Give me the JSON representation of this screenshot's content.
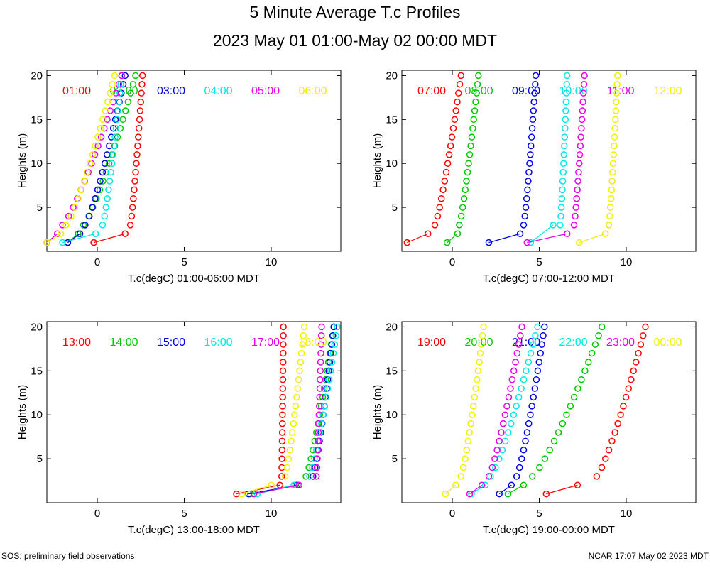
{
  "page": {
    "title": "5 Minute Average T.c Profiles",
    "subtitle": "2023 May 01 01:00-May 02 00:00 MDT",
    "footer_left": "SOS: preliminary field observations",
    "footer_right": "NCAR 17:07 May 02 2023 MDT"
  },
  "colors": [
    "#ff0000",
    "#00c800",
    "#0000e6",
    "#00e8e8",
    "#e600e6",
    "#f0f000"
  ],
  "chart_data": [
    {
      "type": "scatter",
      "xlabel": "T.c(degC) 01:00-06:00 MDT",
      "ylabel": "Heights (m)",
      "xlim": [
        -2.9,
        14
      ],
      "ylim": [
        0,
        20.6
      ],
      "xticks": [
        0,
        5,
        10
      ],
      "yticks": [
        5,
        10,
        15,
        20
      ],
      "series": [
        {
          "name": "01:00",
          "near": [
            [
              -0.2,
              1
            ],
            [
              1.6,
              2
            ]
          ],
          "upper": [
            1.9,
            2.6,
            20.0
          ]
        },
        {
          "name": "02:00",
          "near": [
            [
              -1.7,
              1
            ],
            [
              -1.1,
              2
            ]
          ],
          "upper": [
            -0.8,
            2.2,
            20.0
          ]
        },
        {
          "name": "03:00",
          "near": [
            [
              -1.7,
              1
            ],
            [
              -1.0,
              2
            ]
          ],
          "upper": [
            -0.7,
            1.6,
            20.0
          ]
        },
        {
          "name": "04:00",
          "near": [
            [
              -2.0,
              1
            ],
            [
              -0.1,
              2
            ]
          ],
          "upper": [
            0.3,
            1.4,
            20.0
          ]
        },
        {
          "name": "05:00",
          "near": [
            [
              -2.9,
              1
            ],
            [
              -2.3,
              2
            ]
          ],
          "upper": [
            -2.0,
            1.4,
            20.0
          ]
        },
        {
          "name": "06:00",
          "near": [
            [
              -2.9,
              1
            ],
            [
              -2.1,
              2
            ]
          ],
          "upper": [
            -1.8,
            1.0,
            20.0
          ]
        }
      ]
    },
    {
      "type": "scatter",
      "xlabel": "T.c(degC) 07:00-12:00 MDT",
      "ylabel": "Heights (m)",
      "xlim": [
        -2.9,
        14
      ],
      "ylim": [
        0,
        20.6
      ],
      "xticks": [
        0,
        5,
        10
      ],
      "yticks": [
        5,
        10,
        15,
        20
      ],
      "series": [
        {
          "name": "07:00",
          "near": [
            [
              -2.6,
              1
            ],
            [
              -1.4,
              2
            ]
          ],
          "upper": [
            -1.0,
            0.5,
            20.0
          ]
        },
        {
          "name": "08:00",
          "near": [
            [
              -0.3,
              1
            ],
            [
              0.3,
              2
            ]
          ],
          "upper": [
            0.4,
            1.5,
            20.0
          ]
        },
        {
          "name": "09:00",
          "near": [
            [
              2.1,
              1
            ],
            [
              3.9,
              2
            ]
          ],
          "upper": [
            4.1,
            4.8,
            20.0
          ]
        },
        {
          "name": "10:00",
          "near": [
            [
              4.5,
              1
            ],
            [
              5.8,
              3
            ]
          ],
          "upper": [
            6.2,
            6.6,
            20.0
          ]
        },
        {
          "name": "11:00",
          "near": [
            [
              4.3,
              1
            ],
            [
              6.6,
              2
            ]
          ],
          "upper": [
            7.0,
            7.6,
            20.0
          ]
        },
        {
          "name": "12:00",
          "near": [
            [
              7.3,
              1
            ],
            [
              8.8,
              2
            ]
          ],
          "upper": [
            9.0,
            9.5,
            20.0
          ]
        }
      ]
    },
    {
      "type": "scatter",
      "xlabel": "T.c(degC) 13:00-18:00 MDT",
      "ylabel": "Heights (m)",
      "xlim": [
        -2.9,
        14
      ],
      "ylim": [
        0,
        20.6
      ],
      "xticks": [
        0,
        5,
        10
      ],
      "yticks": [
        5,
        10,
        15,
        20
      ],
      "series": [
        {
          "name": "13:00",
          "near": [
            [
              8.0,
              1
            ],
            [
              10.5,
              2
            ]
          ],
          "upper": [
            10.6,
            10.7,
            20.0
          ]
        },
        {
          "name": "14:00",
          "near": [
            [
              8.8,
              1
            ],
            [
              11.4,
              2
            ]
          ],
          "upper": [
            12.0,
            13.6,
            20.0
          ]
        },
        {
          "name": "15:00",
          "near": [
            [
              8.7,
              1
            ],
            [
              11.5,
              2
            ]
          ],
          "upper": [
            12.4,
            13.6,
            20.0
          ]
        },
        {
          "name": "16:00",
          "near": [
            [
              9.2,
              1
            ],
            [
              11.3,
              2
            ]
          ],
          "upper": [
            12.2,
            13.8,
            20.0
          ]
        },
        {
          "name": "17:00",
          "near": [
            [
              9.0,
              1
            ],
            [
              11.6,
              2
            ]
          ],
          "upper": [
            12.6,
            12.9,
            20.0
          ]
        },
        {
          "name": "18:00",
          "near": [
            [
              8.3,
              1
            ],
            [
              10.0,
              2
            ]
          ],
          "upper": [
            10.8,
            11.9,
            20.0
          ]
        }
      ]
    },
    {
      "type": "scatter",
      "xlabel": "T.c(degC) 19:00-00:00 MDT",
      "ylabel": "Heights (m)",
      "xlim": [
        -2.9,
        14
      ],
      "ylim": [
        0,
        20.6
      ],
      "xticks": [
        0,
        5,
        10
      ],
      "yticks": [
        5,
        10,
        15,
        20
      ],
      "series": [
        {
          "name": "19:00",
          "near": [
            [
              5.4,
              1
            ],
            [
              7.2,
              2
            ]
          ],
          "upper": [
            8.3,
            11.1,
            20.0
          ]
        },
        {
          "name": "20:00",
          "near": [
            [
              3.2,
              1
            ],
            [
              4.1,
              2
            ]
          ],
          "upper": [
            4.6,
            8.6,
            20.0
          ]
        },
        {
          "name": "21:00",
          "near": [
            [
              2.7,
              1
            ],
            [
              3.4,
              2
            ]
          ],
          "upper": [
            3.7,
            5.3,
            20.0
          ]
        },
        {
          "name": "22:00",
          "near": [
            [
              1.1,
              1
            ],
            [
              1.9,
              2
            ]
          ],
          "upper": [
            2.2,
            4.9,
            20.0
          ]
        },
        {
          "name": "23:00",
          "near": [
            [
              1.0,
              1
            ],
            [
              1.7,
              2
            ]
          ],
          "upper": [
            2.1,
            4.0,
            20.0
          ]
        },
        {
          "name": "00:00",
          "near": [
            [
              -0.4,
              1
            ],
            [
              0.2,
              2
            ]
          ],
          "upper": [
            0.5,
            1.8,
            20.0
          ]
        }
      ]
    }
  ]
}
